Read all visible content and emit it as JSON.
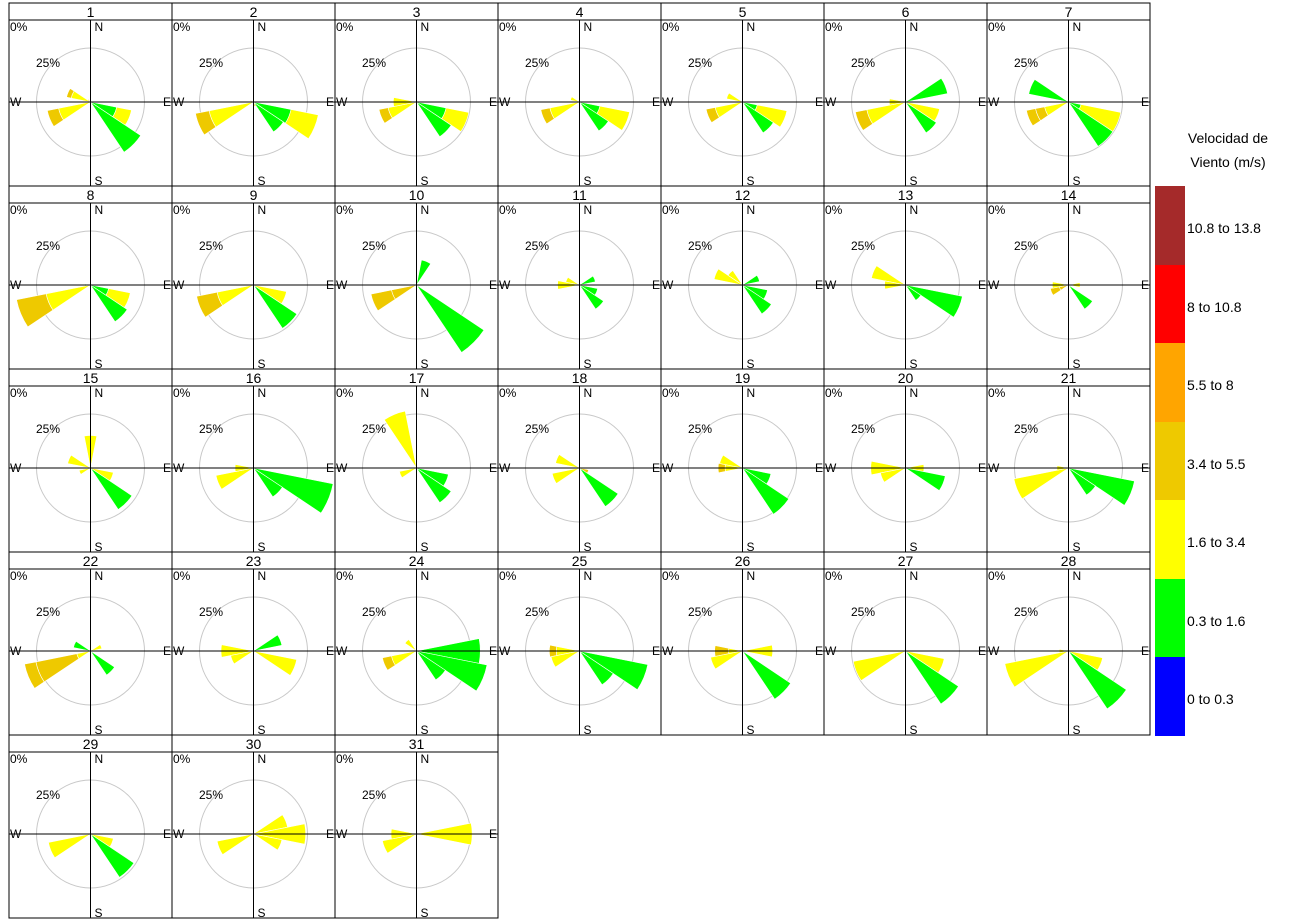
{
  "chart_data": {
    "type": "wind-rose-panels",
    "legend_title_line1": "Velocidad de",
    "legend_title_line2": "Viento (m/s)",
    "center_label": "0%",
    "ring_label": "25%",
    "compass": {
      "n": "N",
      "e": "E",
      "s": "S",
      "w": "W"
    },
    "bins": [
      {
        "label": "10.8 to 13.8",
        "color": "#a52a2a"
      },
      {
        "label": "8 to 10.8",
        "color": "#ff0000"
      },
      {
        "label": "5.5 to 8",
        "color": "#ffa500"
      },
      {
        "label": "3.4 to 5.5",
        "color": "#eec900"
      },
      {
        "label": "1.6 to 3.4",
        "color": "#ffff00"
      },
      {
        "label": "0.3 to 1.6",
        "color": "#00ff00"
      },
      {
        "label": "0 to 0.3",
        "color": "#0000ff"
      }
    ],
    "panels": [
      {
        "label": "1",
        "petals": [
          [
            292.5,
            0,
            4,
            17,
            0
          ],
          [
            315,
            0,
            3,
            0,
            0
          ],
          [
            247.5,
            0,
            10,
            28,
            0
          ],
          [
            112.5,
            0,
            0,
            13,
            23
          ],
          [
            135,
            0,
            0,
            0,
            52
          ]
        ]
      },
      {
        "label": "2",
        "petals": [
          [
            292.5,
            0,
            3,
            0,
            0
          ],
          [
            247.5,
            0,
            12,
            39,
            0
          ],
          [
            112.5,
            0,
            0,
            24,
            33
          ],
          [
            135,
            0,
            0,
            0,
            31
          ],
          [
            157.5,
            0,
            4,
            0,
            0
          ]
        ]
      },
      {
        "label": "3",
        "petals": [
          [
            247.5,
            0,
            8,
            25,
            0
          ],
          [
            270,
            0,
            0,
            20,
            0
          ],
          [
            112.5,
            0,
            0,
            20,
            26
          ],
          [
            135,
            0,
            0,
            0,
            36
          ],
          [
            90,
            0,
            0,
            0,
            0
          ]
        ]
      },
      {
        "label": "4",
        "petals": [
          [
            247.5,
            0,
            8,
            26,
            0
          ],
          [
            292.5,
            0,
            0,
            8,
            0
          ],
          [
            112.5,
            0,
            0,
            26,
            18
          ],
          [
            135,
            0,
            0,
            0,
            30
          ],
          [
            315,
            0,
            0,
            0,
            0
          ]
        ]
      },
      {
        "label": "5",
        "petals": [
          [
            247.5,
            0,
            8,
            24,
            0
          ],
          [
            292.5,
            0,
            0,
            14,
            0
          ],
          [
            112.5,
            0,
            0,
            26,
            13
          ],
          [
            135,
            0,
            0,
            0,
            32
          ],
          [
            0,
            0,
            0,
            0,
            0
          ]
        ]
      },
      {
        "label": "6",
        "petals": [
          [
            247.5,
            0,
            10,
            34,
            0
          ],
          [
            270,
            0,
            0,
            14,
            0
          ],
          [
            67.5,
            0,
            0,
            0,
            37
          ],
          [
            112.5,
            0,
            0,
            30,
            0
          ],
          [
            135,
            0,
            0,
            0,
            32
          ]
        ]
      },
      {
        "label": "7",
        "petals": [
          [
            247.5,
            8,
            8,
            21,
            0
          ],
          [
            292.5,
            0,
            0,
            0,
            35
          ],
          [
            112.5,
            0,
            0,
            35,
            11
          ],
          [
            135,
            0,
            0,
            0,
            46
          ],
          [
            0,
            0,
            0,
            0,
            0
          ]
        ]
      },
      {
        "label": "8",
        "petals": [
          [
            247.5,
            0,
            26,
            39,
            0
          ],
          [
            112.5,
            0,
            0,
            19,
            16
          ],
          [
            135,
            0,
            0,
            0,
            38
          ],
          [
            0,
            0,
            0,
            0,
            0
          ],
          [
            270,
            0,
            0,
            0,
            5
          ]
        ]
      },
      {
        "label": "9",
        "petals": [
          [
            247.5,
            0,
            18,
            32,
            0
          ],
          [
            112.5,
            0,
            0,
            29,
            0
          ],
          [
            135,
            0,
            0,
            0,
            45
          ],
          [
            90,
            0,
            0,
            0,
            0
          ],
          [
            270,
            0,
            0,
            0,
            0
          ]
        ]
      },
      {
        "label": "10",
        "petals": [
          [
            247.5,
            18,
            22,
            0,
            0
          ],
          [
            22.5,
            0,
            0,
            0,
            22
          ],
          [
            135,
            0,
            0,
            0,
            70
          ],
          [
            0,
            0,
            0,
            0,
            0
          ],
          [
            270,
            0,
            0,
            0,
            0
          ]
        ]
      },
      {
        "label": "11",
        "petals": [
          [
            292.5,
            0,
            0,
            12,
            0
          ],
          [
            270,
            0,
            0,
            19,
            0
          ],
          [
            67.5,
            0,
            0,
            0,
            14
          ],
          [
            112.5,
            0,
            0,
            0,
            16
          ],
          [
            135,
            0,
            0,
            0,
            25
          ]
        ]
      },
      {
        "label": "12",
        "petals": [
          [
            292.5,
            0,
            0,
            25,
            0
          ],
          [
            315,
            0,
            0,
            15,
            0
          ],
          [
            67.5,
            0,
            0,
            0,
            15
          ],
          [
            112.5,
            0,
            0,
            0,
            22
          ],
          [
            135,
            0,
            0,
            0,
            30
          ]
        ]
      },
      {
        "label": "13",
        "petals": [
          [
            292.5,
            0,
            0,
            30,
            0
          ],
          [
            270,
            0,
            0,
            18,
            0
          ],
          [
            112.5,
            0,
            0,
            0,
            50
          ],
          [
            135,
            0,
            0,
            0,
            16
          ],
          [
            247.5,
            0,
            0,
            0,
            0
          ]
        ]
      },
      {
        "label": "14",
        "petals": [
          [
            247.5,
            8,
            8,
            0,
            0
          ],
          [
            270,
            0,
            0,
            14,
            0
          ],
          [
            90,
            0,
            0,
            10,
            0
          ],
          [
            135,
            0,
            0,
            0,
            25
          ],
          [
            0,
            0,
            0,
            0,
            0
          ]
        ]
      },
      {
        "label": "15",
        "petals": [
          [
            292.5,
            0,
            0,
            20,
            0
          ],
          [
            0,
            0,
            0,
            28,
            0
          ],
          [
            112.5,
            0,
            0,
            20,
            0
          ],
          [
            135,
            0,
            0,
            0,
            43
          ],
          [
            247.5,
            0,
            0,
            10,
            0
          ]
        ]
      },
      {
        "label": "16",
        "petals": [
          [
            247.5,
            0,
            0,
            33,
            0
          ],
          [
            270,
            0,
            0,
            16,
            0
          ],
          [
            112.5,
            0,
            0,
            0,
            70
          ],
          [
            135,
            0,
            0,
            0,
            30
          ],
          [
            0,
            0,
            0,
            0,
            0
          ]
        ]
      },
      {
        "label": "17",
        "petals": [
          [
            337.5,
            0,
            0,
            50,
            0
          ],
          [
            247.5,
            0,
            0,
            15,
            0
          ],
          [
            112.5,
            0,
            0,
            0,
            28
          ],
          [
            135,
            0,
            0,
            0,
            36
          ],
          [
            90,
            0,
            0,
            0,
            0
          ]
        ]
      },
      {
        "label": "18",
        "petals": [
          [
            292.5,
            0,
            0,
            21,
            0
          ],
          [
            247.5,
            0,
            0,
            24,
            0
          ],
          [
            112.5,
            8,
            0,
            0,
            0
          ],
          [
            135,
            0,
            0,
            0,
            40
          ],
          [
            0,
            0,
            0,
            0,
            0
          ]
        ]
      },
      {
        "label": "19",
        "petals": [
          [
            270,
            6,
            0,
            15,
            0
          ],
          [
            292.5,
            0,
            0,
            20,
            0
          ],
          [
            112.5,
            0,
            0,
            0,
            25
          ],
          [
            135,
            0,
            0,
            0,
            48
          ],
          [
            0,
            0,
            0,
            0,
            0
          ]
        ]
      },
      {
        "label": "20",
        "petals": [
          [
            270,
            0,
            0,
            30,
            0
          ],
          [
            247.5,
            0,
            0,
            22,
            0
          ],
          [
            90,
            0,
            0,
            16,
            0
          ],
          [
            112.5,
            0,
            0,
            0,
            35
          ],
          [
            180,
            0,
            0,
            0,
            0
          ]
        ]
      },
      {
        "label": "21",
        "petals": [
          [
            247.5,
            0,
            0,
            48,
            0
          ],
          [
            270,
            0,
            0,
            10,
            0
          ],
          [
            112.5,
            0,
            0,
            0,
            58
          ],
          [
            135,
            0,
            0,
            0,
            28
          ],
          [
            180,
            0,
            0,
            0,
            0
          ]
        ]
      },
      {
        "label": "22",
        "petals": [
          [
            247.5,
            10,
            36,
            12,
            0
          ],
          [
            292.5,
            0,
            0,
            0,
            15
          ],
          [
            67.5,
            0,
            0,
            10,
            0
          ],
          [
            135,
            0,
            0,
            0,
            25
          ],
          [
            270,
            0,
            0,
            0,
            0
          ]
        ]
      },
      {
        "label": "23",
        "petals": [
          [
            270,
            0,
            0,
            28,
            0
          ],
          [
            247.5,
            0,
            0,
            20,
            0
          ],
          [
            112.5,
            0,
            0,
            38,
            0
          ],
          [
            67.5,
            0,
            0,
            0,
            25
          ],
          [
            0,
            0,
            0,
            0,
            0
          ]
        ]
      },
      {
        "label": "24",
        "petals": [
          [
            247.5,
            8,
            0,
            22,
            0
          ],
          [
            315,
            0,
            0,
            12,
            0
          ],
          [
            90,
            0,
            0,
            0,
            55
          ],
          [
            112.5,
            0,
            0,
            0,
            62
          ],
          [
            135,
            0,
            0,
            0,
            30
          ]
        ]
      },
      {
        "label": "25",
        "petals": [
          [
            270,
            6,
            0,
            20,
            0
          ],
          [
            247.5,
            0,
            0,
            25,
            0
          ],
          [
            112.5,
            0,
            0,
            0,
            60
          ],
          [
            135,
            0,
            0,
            0,
            35
          ],
          [
            0,
            0,
            0,
            0,
            0
          ]
        ]
      },
      {
        "label": "26",
        "petals": [
          [
            270,
            12,
            0,
            12,
            0
          ],
          [
            247.5,
            0,
            0,
            28,
            0
          ],
          [
            90,
            0,
            0,
            26,
            0
          ],
          [
            135,
            0,
            0,
            0,
            50
          ],
          [
            315,
            0,
            0,
            0,
            0
          ]
        ]
      },
      {
        "label": "27",
        "petals": [
          [
            247.5,
            0,
            0,
            46,
            0
          ],
          [
            112.5,
            0,
            0,
            34,
            0
          ],
          [
            135,
            0,
            0,
            0,
            55
          ],
          [
            0,
            0,
            0,
            0,
            0
          ],
          [
            292.5,
            0,
            0,
            0,
            0
          ]
        ]
      },
      {
        "label": "28",
        "petals": [
          [
            247.5,
            0,
            0,
            56,
            0
          ],
          [
            270,
            0,
            0,
            8,
            0
          ],
          [
            112.5,
            0,
            0,
            30,
            0
          ],
          [
            135,
            0,
            0,
            0,
            60
          ],
          [
            0,
            0,
            0,
            0,
            0
          ]
        ]
      },
      {
        "label": "29",
        "petals": [
          [
            247.5,
            0,
            0,
            37,
            0
          ],
          [
            112.5,
            0,
            0,
            20,
            0
          ],
          [
            135,
            0,
            0,
            0,
            45
          ],
          [
            0,
            0,
            0,
            0,
            0
          ],
          [
            270,
            0,
            0,
            0,
            0
          ]
        ]
      },
      {
        "label": "30",
        "petals": [
          [
            247.5,
            0,
            0,
            32,
            0
          ],
          [
            67.5,
            0,
            0,
            30,
            0
          ],
          [
            90,
            0,
            0,
            45,
            0
          ],
          [
            112.5,
            0,
            0,
            25,
            0
          ],
          [
            45,
            0,
            0,
            0,
            0
          ]
        ]
      },
      {
        "label": "31",
        "petals": [
          [
            247.5,
            0,
            0,
            30,
            0
          ],
          [
            270,
            0,
            0,
            22,
            0
          ],
          [
            90,
            0,
            0,
            48,
            0
          ],
          [
            112.5,
            0,
            0,
            0,
            0
          ],
          [
            67.5,
            0,
            0,
            0,
            0
          ]
        ]
      }
    ]
  }
}
